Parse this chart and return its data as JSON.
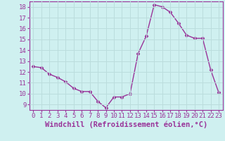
{
  "x": [
    0,
    1,
    2,
    3,
    4,
    5,
    6,
    7,
    8,
    9,
    10,
    11,
    12,
    13,
    14,
    15,
    16,
    17,
    18,
    19,
    20,
    21,
    22,
    23
  ],
  "y": [
    12.5,
    12.4,
    11.8,
    11.5,
    11.1,
    10.5,
    10.2,
    10.2,
    9.3,
    8.7,
    9.7,
    9.7,
    10.0,
    13.7,
    15.3,
    18.2,
    18.0,
    17.5,
    16.5,
    15.4,
    15.1,
    15.1,
    12.2,
    10.1
  ],
  "line_color": "#993399",
  "marker": "D",
  "marker_size": 2.5,
  "bg_color": "#cff0f0",
  "grid_color": "#bbdddd",
  "xlabel": "Windchill (Refroidissement éolien,°C)",
  "xlim": [
    -0.5,
    23.5
  ],
  "ylim": [
    8.5,
    18.5
  ],
  "yticks": [
    9,
    10,
    11,
    12,
    13,
    14,
    15,
    16,
    17,
    18
  ],
  "xticks": [
    0,
    1,
    2,
    3,
    4,
    5,
    6,
    7,
    8,
    9,
    10,
    11,
    12,
    13,
    14,
    15,
    16,
    17,
    18,
    19,
    20,
    21,
    22,
    23
  ],
  "tick_label_size": 6.5,
  "xlabel_size": 7.5,
  "line_width": 1.0
}
